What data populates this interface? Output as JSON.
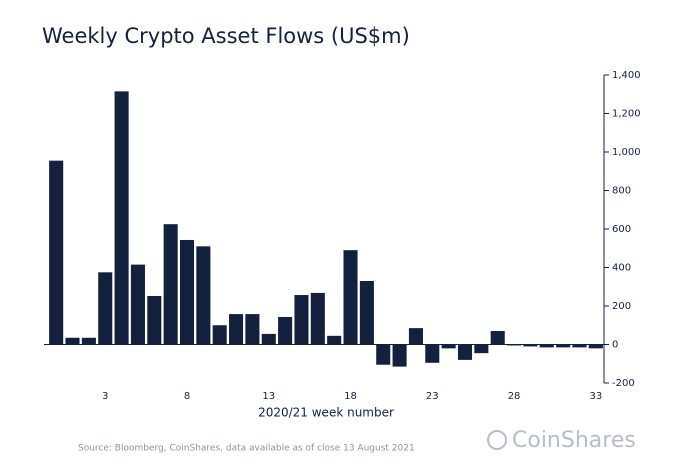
{
  "chart_data": {
    "type": "bar",
    "title": "Weekly Crypto Asset Flows (US$m)",
    "x_label": "2020/21 week number",
    "source": "Source: Bloomberg, CoinShares, data available as of close 13 August 2021",
    "logo": "CoinShares",
    "categories": [
      null,
      null,
      null,
      "3",
      null,
      null,
      null,
      null,
      "8",
      null,
      null,
      null,
      null,
      "13",
      null,
      null,
      null,
      null,
      "18",
      null,
      null,
      null,
      null,
      "23",
      null,
      null,
      null,
      null,
      "28",
      null,
      null,
      null,
      null,
      "33"
    ],
    "values": [
      955,
      35,
      35,
      375,
      1315,
      415,
      252,
      625,
      543,
      510,
      100,
      158,
      158,
      55,
      143,
      257,
      268,
      45,
      490,
      330,
      -105,
      -115,
      85,
      -95,
      -20,
      -80,
      -45,
      70,
      -5,
      -10,
      -15,
      -15,
      -15,
      -20
    ],
    "color": "#13213f",
    "ylim": [
      -200,
      1400
    ],
    "yticks": [
      -200,
      0,
      200,
      400,
      600,
      800,
      {
        "value": 1000,
        "label": "1,000"
      },
      {
        "value": 1200,
        "label": "1,200"
      },
      {
        "value": 1400,
        "label": "1,400"
      }
    ]
  }
}
